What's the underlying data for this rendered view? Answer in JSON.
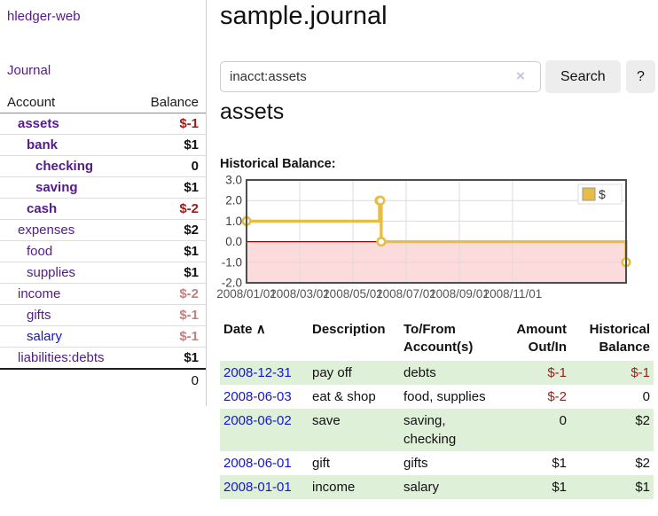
{
  "sidebar": {
    "brand": "hledger-web",
    "journal_link": "Journal",
    "headers": {
      "account": "Account",
      "balance": "Balance"
    },
    "accounts": [
      {
        "name": "assets",
        "balance": "$-1"
      },
      {
        "name": "bank",
        "balance": "$1"
      },
      {
        "name": "checking",
        "balance": "0"
      },
      {
        "name": "saving",
        "balance": "$1"
      },
      {
        "name": "cash",
        "balance": "$-2"
      },
      {
        "name": "expenses",
        "balance": "$2"
      },
      {
        "name": "food",
        "balance": "$1"
      },
      {
        "name": "supplies",
        "balance": "$1"
      },
      {
        "name": "income",
        "balance": "$-2"
      },
      {
        "name": "gifts",
        "balance": "$-1"
      },
      {
        "name": "salary",
        "balance": "$-1"
      },
      {
        "name": "liabilities:debts",
        "balance": "$1"
      }
    ],
    "total": "0"
  },
  "header": {
    "title": "sample.journal"
  },
  "search": {
    "query": "inacct:assets",
    "clear_icon": "×",
    "button_label": "Search",
    "help_label": "?"
  },
  "account_page": {
    "title": "assets",
    "chart_label": "Historical Balance:"
  },
  "chart_data": {
    "type": "line",
    "step": true,
    "title": "Historical Balance:",
    "legend": "$",
    "legend_position": "top-right",
    "grid": true,
    "ylim": [
      -2,
      3
    ],
    "y_ticks": [
      "3.0",
      "2.0",
      "1.0",
      "0.0",
      "-1.0",
      "-2.0"
    ],
    "x_ticks": [
      "2008/01/01",
      "2008/03/01",
      "2008/05/01",
      "2008/07/01",
      "2008/09/01",
      "2008/11/01"
    ],
    "series": [
      {
        "name": "$",
        "color": "#e6bd45",
        "points": [
          {
            "date": "2008-01-01",
            "value": 1
          },
          {
            "date": "2008-06-01",
            "value": 2
          },
          {
            "date": "2008-06-02",
            "value": 2
          },
          {
            "date": "2008-06-03",
            "value": 0
          },
          {
            "date": "2008-12-31",
            "value": -1
          }
        ]
      }
    ],
    "negative_fill": "#fbdbdb",
    "zero_line_color": "#8b0000"
  },
  "transactions": {
    "headers": {
      "date": "Date",
      "sort_indicator": "∧",
      "description": "Description",
      "accounts": "To/From Account(s)",
      "amount": "Amount Out/In",
      "balance": "Historical Balance"
    },
    "rows": [
      {
        "date": "2008-12-31",
        "description": "pay off",
        "accounts": "debts",
        "amount": "$-1",
        "balance": "$-1"
      },
      {
        "date": "2008-06-03",
        "description": "eat & shop",
        "accounts": "food, supplies",
        "amount": "$-2",
        "balance": "0"
      },
      {
        "date": "2008-06-02",
        "description": "save",
        "accounts": "saving, checking",
        "amount": "0",
        "balance": "$2"
      },
      {
        "date": "2008-06-01",
        "description": "gift",
        "accounts": "gifts",
        "amount": "$1",
        "balance": "$2"
      },
      {
        "date": "2008-01-01",
        "description": "income",
        "accounts": "salary",
        "amount": "$1",
        "balance": "$1"
      }
    ]
  },
  "colors": {
    "link_purple": "#551a8b",
    "link_blue": "#1414d2",
    "negative_strong": "#9b1b1b",
    "negative_soft": "#c28080",
    "row_stripe_green": "#dff0d8",
    "chart_gold": "#e6bd45",
    "chart_negative_fill": "#fbdbdb"
  }
}
